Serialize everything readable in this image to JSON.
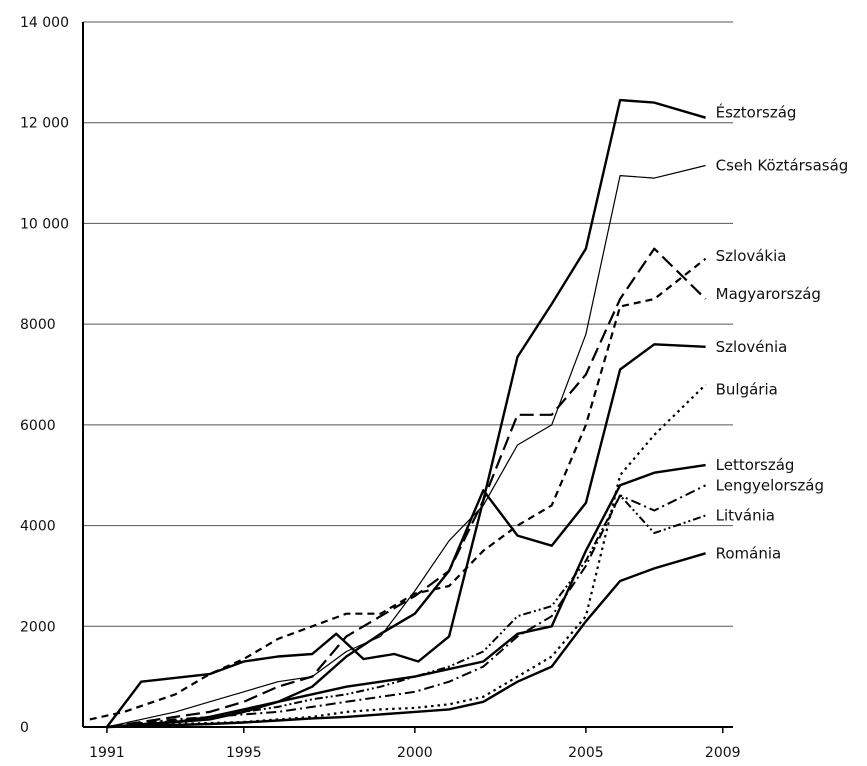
{
  "chart_data": {
    "type": "line",
    "xlim": [
      1990.3,
      2009.3
    ],
    "ylim": [
      0,
      14000
    ],
    "grid": true,
    "x_ticks": [
      {
        "value": 1991,
        "label": "1991"
      },
      {
        "value": 1995,
        "label": "1995"
      },
      {
        "value": 2000,
        "label": "2000"
      },
      {
        "value": 2005,
        "label": "2005"
      },
      {
        "value": 2009,
        "label": "2009"
      }
    ],
    "y_ticks": [
      {
        "value": 0,
        "label": "0"
      },
      {
        "value": 2000,
        "label": "2000"
      },
      {
        "value": 4000,
        "label": "4000"
      },
      {
        "value": 6000,
        "label": "6000"
      },
      {
        "value": 8000,
        "label": "8000"
      },
      {
        "value": 10000,
        "label": "10 000"
      },
      {
        "value": 12000,
        "label": "12 000"
      },
      {
        "value": 14000,
        "label": "14 000"
      }
    ],
    "series": [
      {
        "name": "Észtország",
        "style": "solid-thick",
        "label_y": 12200,
        "x": [
          1991,
          1992,
          1994,
          1995,
          1996,
          1997,
          1997.7,
          1998.5,
          1999.4,
          2000.1,
          2001,
          2002,
          2003,
          2004,
          2005,
          2006,
          2007,
          2008.5
        ],
        "y": [
          0,
          900,
          1050,
          1300,
          1400,
          1450,
          1850,
          1350,
          1450,
          1300,
          1800,
          4500,
          7350,
          8400,
          9500,
          12450,
          12400,
          12100
        ]
      },
      {
        "name": "Cseh Köztársaság",
        "style": "solid-thin",
        "label_y": 11150,
        "x": [
          1991,
          1992,
          1993,
          1994,
          1995,
          1996,
          1997,
          1998,
          1999,
          2000,
          2001,
          2002,
          2003,
          2004,
          2005,
          2006,
          2007,
          2008.5
        ],
        "y": [
          0,
          150,
          300,
          500,
          700,
          900,
          1000,
          1500,
          1800,
          2700,
          3700,
          4400,
          5600,
          6000,
          7800,
          10950,
          10900,
          11150
        ]
      },
      {
        "name": "Szlovákia",
        "style": "long-dash",
        "label_y": 9350,
        "x": [
          1991,
          1992,
          1993,
          1994,
          1995,
          1996,
          1997,
          1998,
          1999,
          2000,
          2001,
          2002,
          2003,
          2004,
          2005,
          2006,
          2007,
          2008.5
        ],
        "y": [
          0,
          100,
          200,
          300,
          500,
          800,
          1000,
          1800,
          2200,
          2600,
          3100,
          4500,
          6200,
          6200,
          7000,
          8500,
          9500,
          8500
        ]
      },
      {
        "name": "Magyarország",
        "style": "dash",
        "label_y": 8600,
        "x": [
          1990.5,
          1991.5,
          1993,
          1994,
          1995,
          1996,
          1997,
          1998,
          1999,
          2000,
          2001,
          2002,
          2003,
          2004,
          2005,
          2006,
          2007,
          2008.5
        ],
        "y": [
          150,
          300,
          650,
          1050,
          1350,
          1750,
          2000,
          2250,
          2250,
          2650,
          2800,
          3500,
          4000,
          4400,
          6000,
          8350,
          8500,
          9300
        ]
      },
      {
        "name": "Szlovénia",
        "style": "solid-thick",
        "label_y": 7550,
        "x": [
          1991,
          1992,
          1993,
          1994,
          1995,
          1996,
          1997,
          1998,
          1999,
          2000,
          2001,
          2002,
          2003,
          2004,
          2005,
          2006,
          2007,
          2008.5
        ],
        "y": [
          0,
          50,
          100,
          150,
          300,
          500,
          800,
          1400,
          1850,
          2250,
          3100,
          4700,
          3800,
          3600,
          4450,
          7100,
          7600,
          7550
        ]
      },
      {
        "name": "Bulgária",
        "style": "dot",
        "label_y": 6700,
        "x": [
          1991,
          1992,
          1993,
          1994,
          1995,
          1996,
          1997,
          1998,
          1999,
          2000,
          2001,
          2002,
          2003,
          2004,
          2005,
          2006,
          2007,
          2008.5
        ],
        "y": [
          0,
          30,
          60,
          80,
          100,
          150,
          200,
          300,
          350,
          380,
          450,
          600,
          1000,
          1400,
          2200,
          5000,
          5800,
          6800
        ]
      },
      {
        "name": "Lettország",
        "style": "solid-thick",
        "label_y": 5200,
        "x": [
          1991,
          1992,
          1993,
          1994,
          1995,
          1996,
          1997,
          1998,
          1999,
          2000,
          2001,
          2002,
          2003,
          2004,
          2005,
          2006,
          2007,
          2008.5
        ],
        "y": [
          0,
          50,
          100,
          200,
          350,
          500,
          650,
          800,
          900,
          1000,
          1150,
          1300,
          1850,
          2000,
          3500,
          4800,
          5050,
          5200
        ]
      },
      {
        "name": "Lengyelország",
        "style": "dash-dot",
        "label_y": 4800,
        "x": [
          1991,
          1992,
          1993,
          1994,
          1995,
          1996,
          1997,
          1998,
          1999,
          2000,
          2001,
          2002,
          2003,
          2004,
          2005,
          2006,
          2007,
          2008.5
        ],
        "y": [
          0,
          80,
          150,
          200,
          250,
          300,
          400,
          500,
          600,
          700,
          900,
          1200,
          1800,
          2200,
          3200,
          4600,
          4300,
          4800
        ]
      },
      {
        "name": "Litvánia",
        "style": "dash-dot-dot",
        "label_y": 4200,
        "x": [
          1991,
          1992,
          1993,
          1994,
          1995,
          1996,
          1997,
          1998,
          1999,
          2000,
          2001,
          2002,
          2003,
          2004,
          2005,
          2006,
          2007,
          2008.5
        ],
        "y": [
          0,
          60,
          120,
          200,
          300,
          400,
          550,
          650,
          800,
          1000,
          1200,
          1500,
          2200,
          2400,
          3300,
          4600,
          3850,
          4200
        ]
      },
      {
        "name": "Románia",
        "style": "solid-thick",
        "label_y": 3450,
        "x": [
          1991,
          1992,
          1993,
          1994,
          1995,
          1996,
          1997,
          1998,
          1999,
          2000,
          2001,
          2002,
          2003,
          2004,
          2005,
          2006,
          2007,
          2008.5
        ],
        "y": [
          0,
          20,
          40,
          60,
          90,
          130,
          170,
          200,
          250,
          300,
          350,
          500,
          900,
          1200,
          2100,
          2900,
          3150,
          3450
        ]
      }
    ]
  }
}
